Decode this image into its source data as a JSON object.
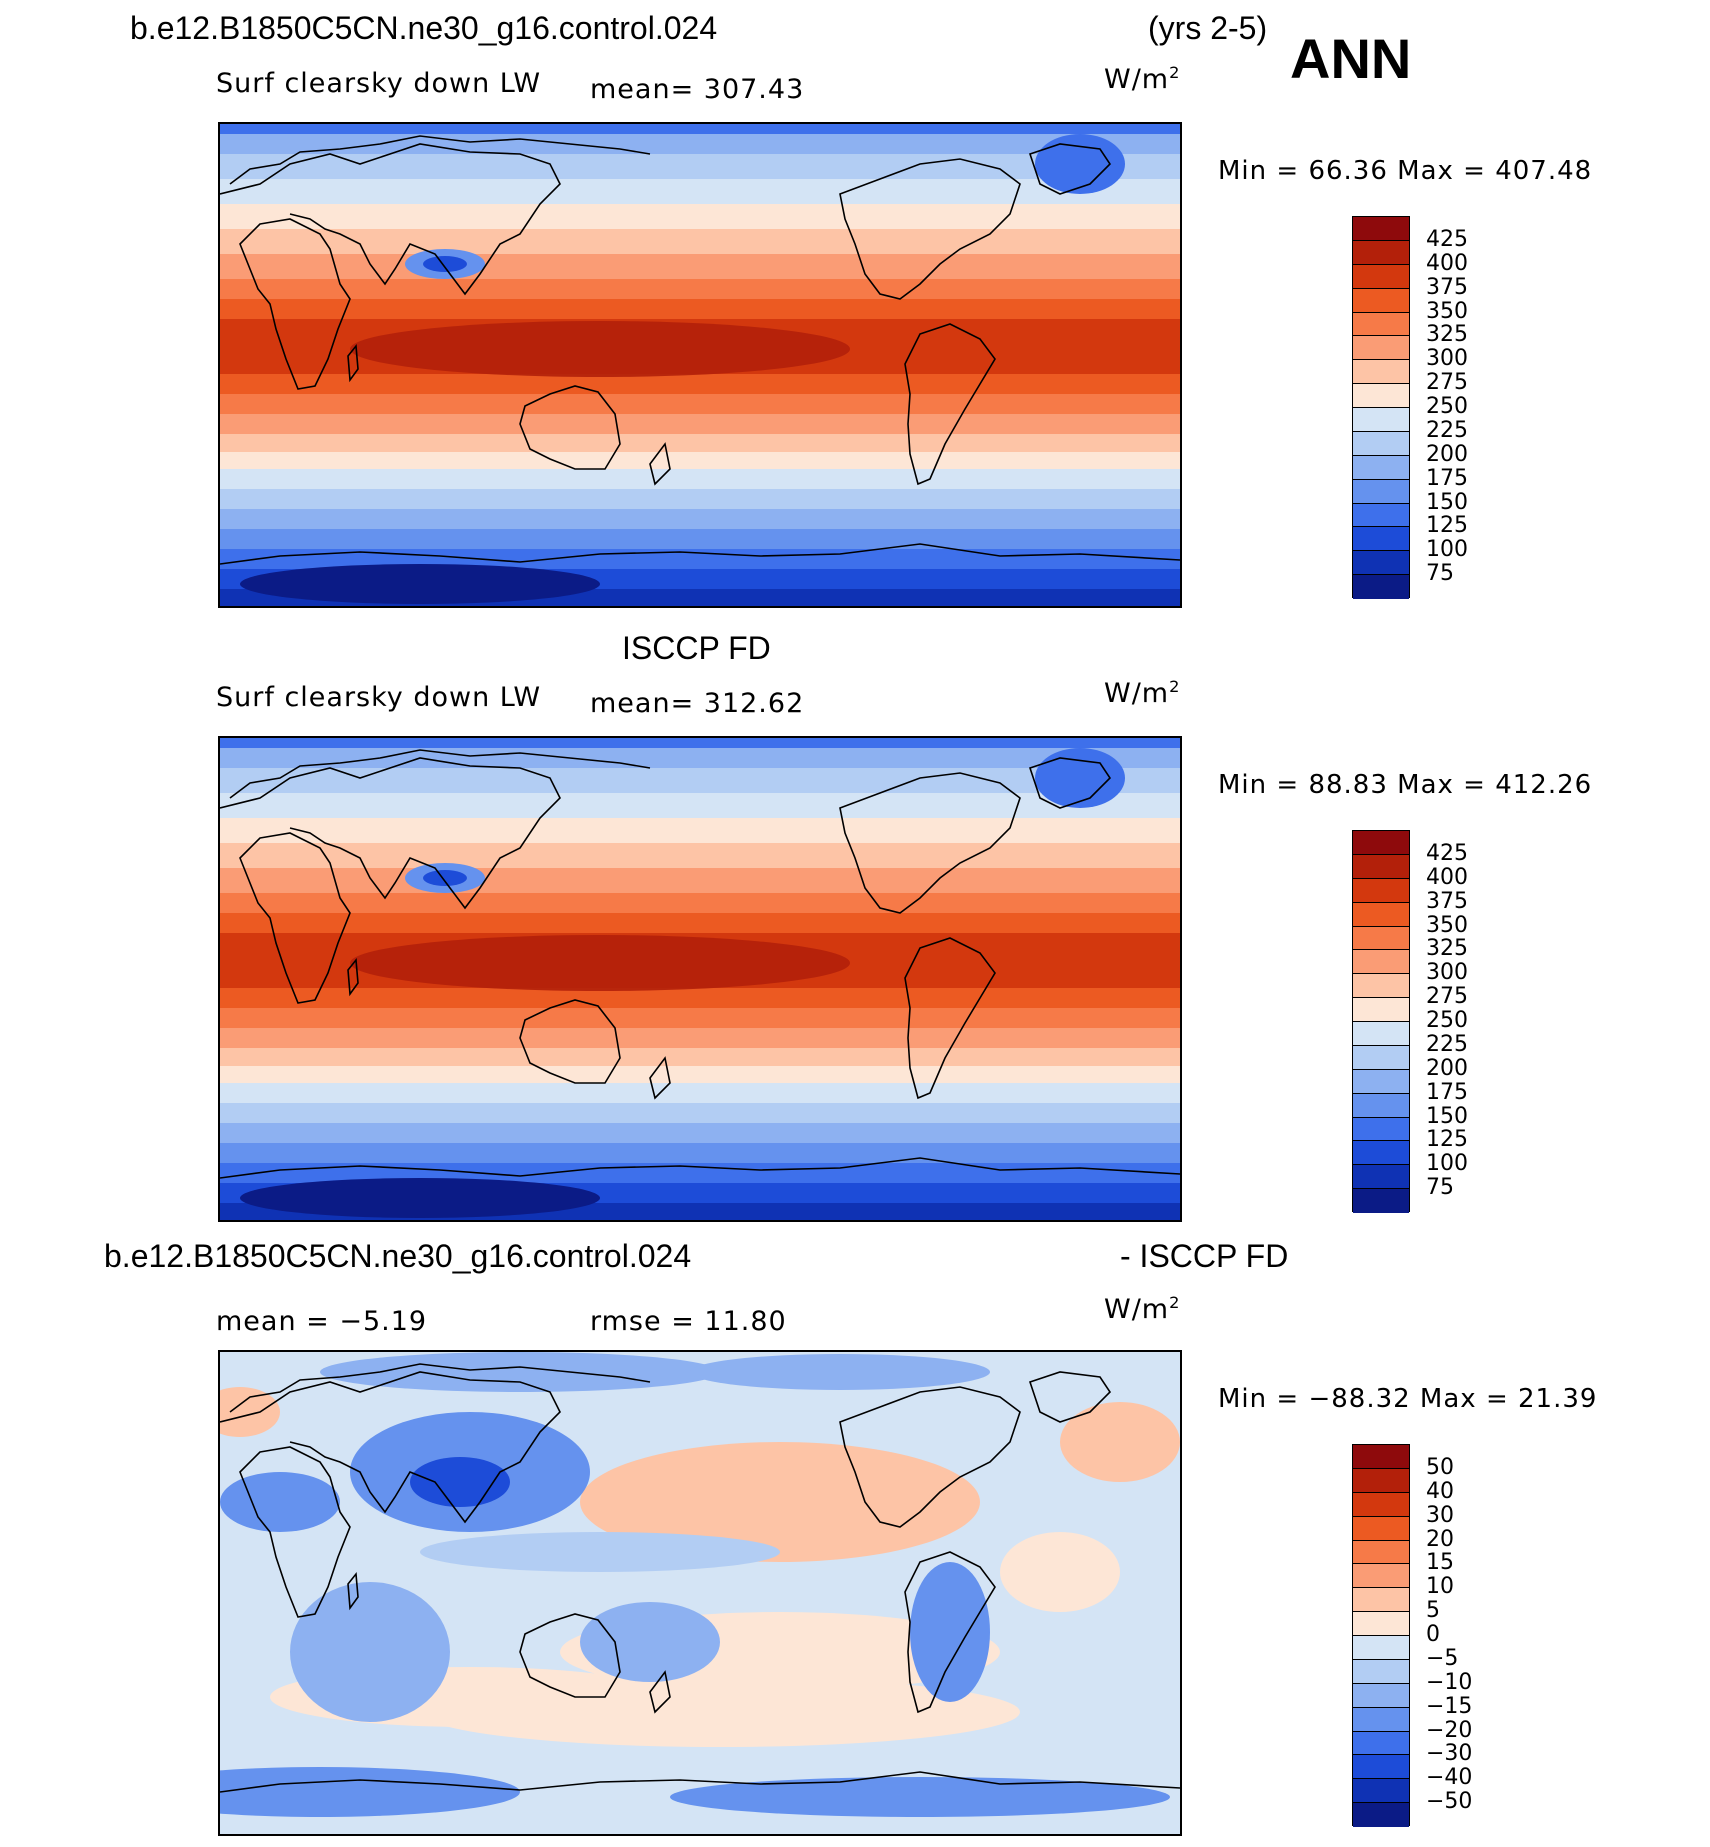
{
  "header": {
    "case_name": "b.e12.B1850C5CN.ne30_g16.control.024",
    "years": "(yrs 2-5)",
    "season": "ANN"
  },
  "panels": [
    {
      "id": "model",
      "section_title": "",
      "variable": "Surf clearsky down LW",
      "stat_text": "mean= 307.43",
      "units": "W/m",
      "units_sup": "2",
      "minmax": "Min =   66.36 Max = 407.48",
      "colorbar": {
        "labels": [
          "425",
          "400",
          "375",
          "350",
          "325",
          "300",
          "275",
          "250",
          "225",
          "200",
          "175",
          "150",
          "125",
          "100",
          "75"
        ],
        "colors": [
          "#8e0a0c",
          "#b3200a",
          "#d3380e",
          "#ec5a22",
          "#f67a48",
          "#fa9c75",
          "#fdc4a6",
          "#fde6d6",
          "#d4e4f5",
          "#b2cdf3",
          "#8db1f1",
          "#6592ee",
          "#3e70eb",
          "#1d4cd8",
          "#0f32b4",
          "#0b1b86"
        ]
      }
    },
    {
      "id": "obs",
      "section_title": "ISCCP FD",
      "variable": "Surf clearsky down LW",
      "stat_text": "mean= 312.62",
      "units": "W/m",
      "units_sup": "2",
      "minmax": "Min =   88.83 Max = 412.26",
      "colorbar": {
        "labels": [
          "425",
          "400",
          "375",
          "350",
          "325",
          "300",
          "275",
          "250",
          "225",
          "200",
          "175",
          "150",
          "125",
          "100",
          "75"
        ],
        "colors": [
          "#8e0a0c",
          "#b3200a",
          "#d3380e",
          "#ec5a22",
          "#f67a48",
          "#fa9c75",
          "#fdc4a6",
          "#fde6d6",
          "#d4e4f5",
          "#b2cdf3",
          "#8db1f1",
          "#6592ee",
          "#3e70eb",
          "#1d4cd8",
          "#0f32b4",
          "#0b1b86"
        ]
      }
    },
    {
      "id": "diff",
      "section_title_left": "b.e12.B1850C5CN.ne30_g16.control.024",
      "section_title_right": "- ISCCP FD",
      "mean_text": "mean =   −5.19",
      "rmse_text": "rmse =   11.80",
      "units": "W/m",
      "units_sup": "2",
      "minmax": "Min = −88.32 Max =   21.39",
      "colorbar": {
        "labels": [
          "50",
          "40",
          "30",
          "20",
          "15",
          "10",
          "5",
          "0",
          "−5",
          "−10",
          "−15",
          "−20",
          "−30",
          "−40",
          "−50"
        ],
        "colors": [
          "#8e0a0c",
          "#b3200a",
          "#d3380e",
          "#ec5a22",
          "#f67a48",
          "#fa9c75",
          "#fdc4a6",
          "#fde6d6",
          "#d4e4f5",
          "#b2cdf3",
          "#8db1f1",
          "#6592ee",
          "#3e70eb",
          "#1d4cd8",
          "#0f32b4",
          "#0b1b86"
        ]
      }
    }
  ]
}
